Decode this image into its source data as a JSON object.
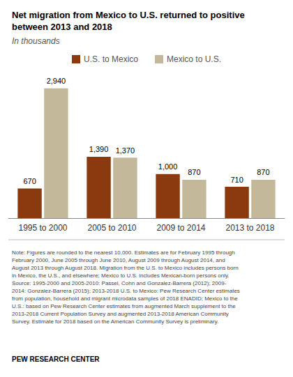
{
  "chart_data": {
    "type": "bar",
    "title": "Net migration from Mexico to U.S. returned to positive\nbetween 2013 and 2018",
    "subtitle": "In thousands",
    "categories": [
      "1995 to 2000",
      "2005 to 2010",
      "2009 to 2014",
      "2013 to 2018"
    ],
    "series": [
      {
        "name": "U.S. to Mexico",
        "color": "#8B3A0F",
        "values": [
          670,
          1390,
          1000,
          710
        ],
        "value_labels": [
          "670",
          "1,390",
          "1,000",
          "710"
        ]
      },
      {
        "name": "Mexico to U.S.",
        "color": "#C4B89A",
        "values": [
          2940,
          1370,
          870,
          870
        ],
        "value_labels": [
          "2,940",
          "1,370",
          "870",
          "870"
        ]
      }
    ],
    "ylim": [
      0,
      3300
    ],
    "grid": false,
    "legend": "top",
    "data_labels": true,
    "tick_labels": "x",
    "annotations": [
      "Note: Figures are rounded to the nearest 10,000. Estimates are for February 1995 through\nFebruary 2000, June 2005 through June 2010, August 2009 through August 2014, and\nAugust 2013 through August 2018. Migration from the U.S. to Mexico includes persons born\nin Mexico, the U.S., and elsewhere; Mexico to U.S. includes Mexican-born persons only.\nSource: 1995-2000 and 2005-2010: Passel, Cohn and Gonzalez-Barrera (2012); 2009-\n2014: Gonzalez-Barrera (2015); 2013-2018 U.S. to Mexico: Pew Research Center estimates\nfrom population, household and migrant microdata samples of 2018 ENADID; Mexico to the\nU.S.: based on Pew Research Center estimates from augmented March supplement to the\n2013-2018 Current Population Survey and augmented 2013-2018 American Community\nSurvey. Estimate for 2018 based on the American Community Survey is preliminary.",
      "PEW RESEARCH CENTER"
    ]
  }
}
